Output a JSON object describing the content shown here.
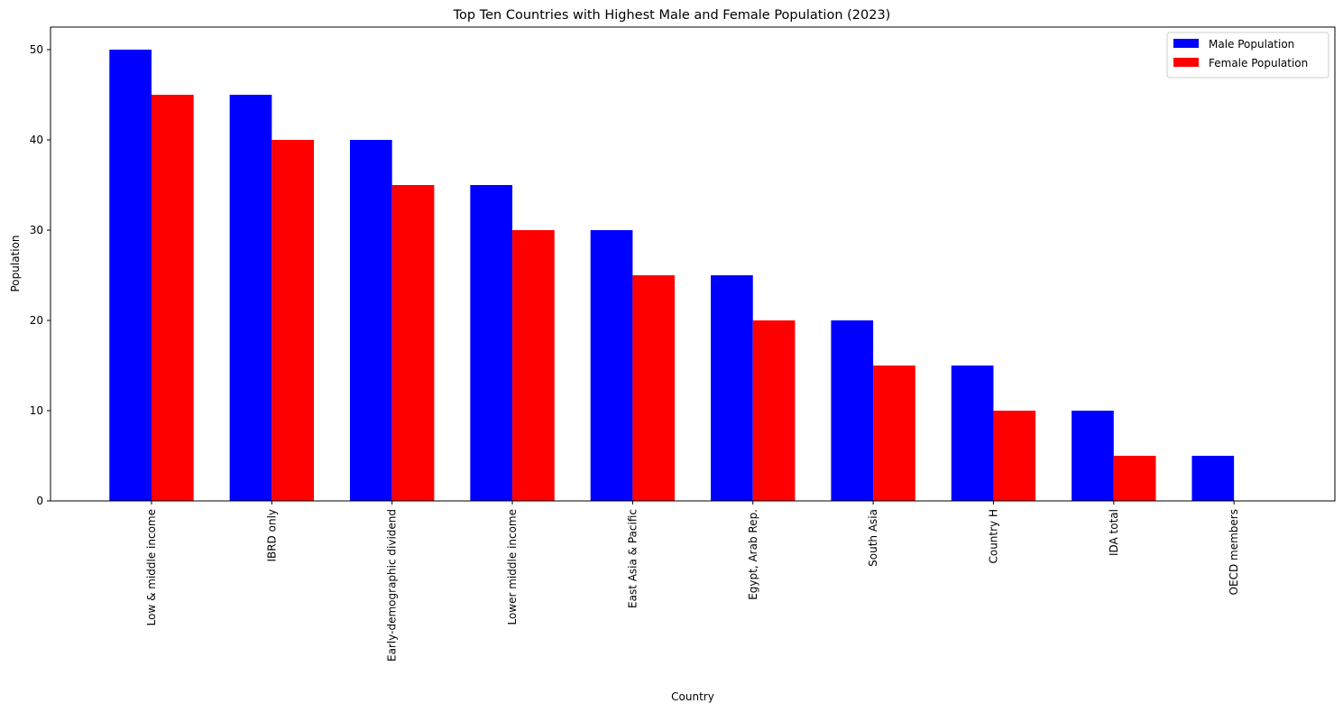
{
  "chart_data": {
    "type": "bar",
    "title": "Top Ten Countries with Highest Male and Female Population (2023)",
    "xlabel": "Country",
    "ylabel": "Population",
    "ylim": [
      0,
      52.5
    ],
    "yticks": [
      0,
      10,
      20,
      30,
      40,
      50
    ],
    "grid": false,
    "legend_position": "top-right",
    "categories": [
      "Low & middle income",
      "IBRD only",
      "Early-demographic dividend",
      "Lower middle income",
      "East Asia & Pacific",
      "Egypt, Arab Rep.",
      "South Asia",
      "Country H",
      "IDA total",
      "OECD members"
    ],
    "series": [
      {
        "name": "Male Population",
        "color": "#0000ff",
        "values": [
          50,
          45,
          40,
          35,
          30,
          25,
          20,
          15,
          10,
          5
        ]
      },
      {
        "name": "Female Population",
        "color": "#ff0000",
        "values": [
          45,
          40,
          35,
          30,
          25,
          20,
          15,
          10,
          5,
          0
        ]
      }
    ]
  }
}
